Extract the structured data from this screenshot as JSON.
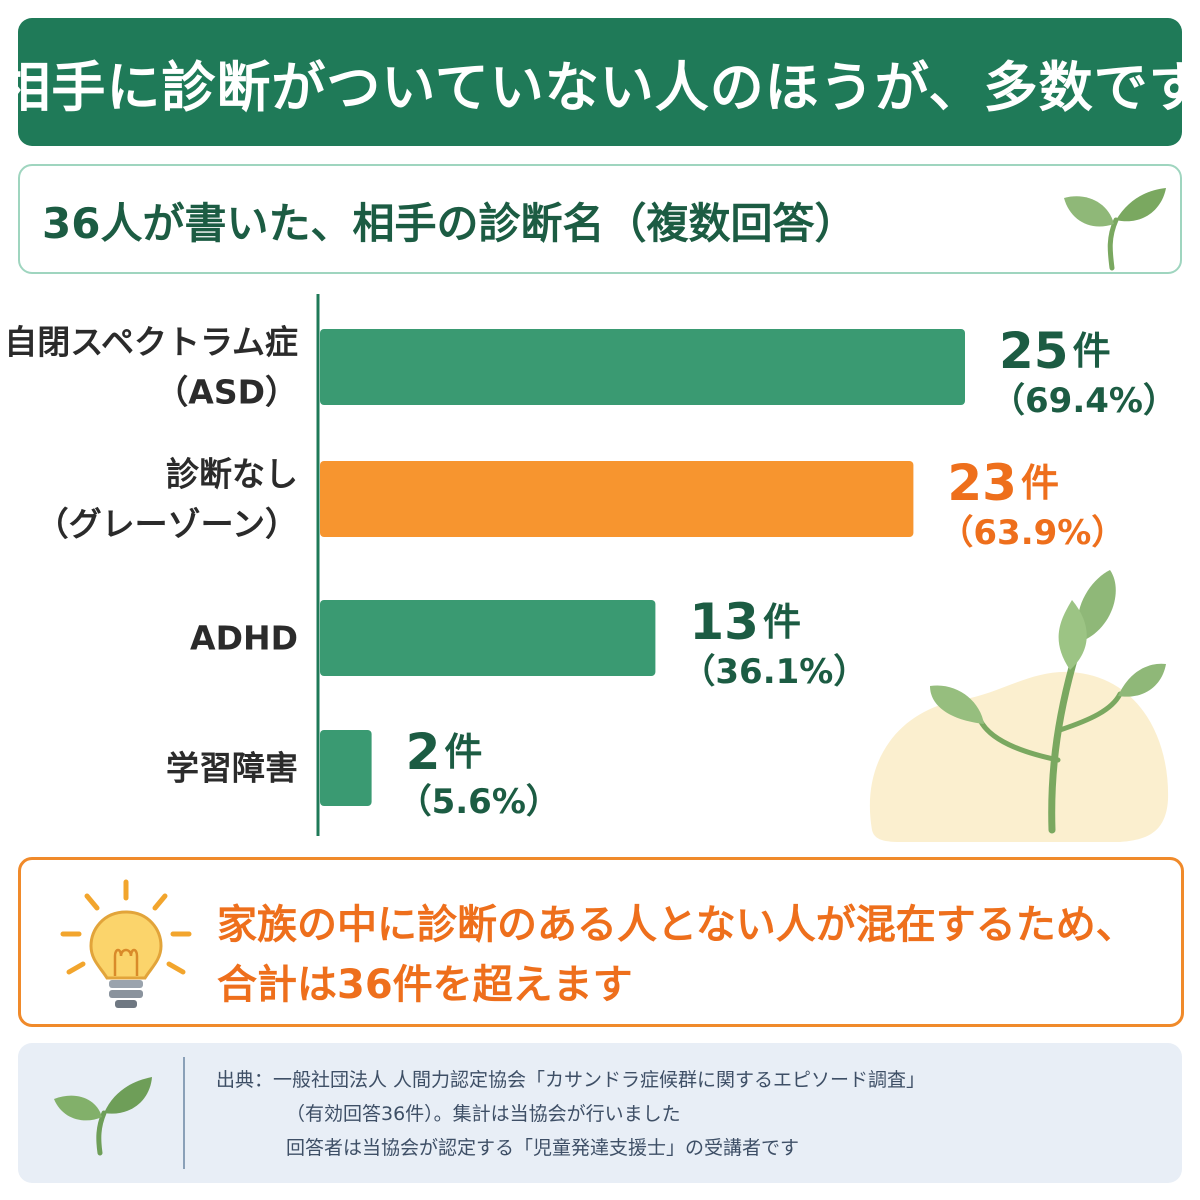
{
  "header": {
    "title": "相手に診断がついていない人のほうが、多数です"
  },
  "chart_data": {
    "type": "bar",
    "orientation": "horizontal",
    "title": "36人が書いた、相手の診断名（複数回答）",
    "categories": [
      [
        "自閉スペクトラム症",
        "（ASD）"
      ],
      [
        "診断なし",
        "（グレーゾーン）"
      ],
      [
        "ADHD"
      ],
      [
        "学習障害"
      ]
    ],
    "values": [
      25,
      23,
      13,
      2
    ],
    "value_labels": [
      "25件",
      "23件",
      "13件",
      "2件"
    ],
    "percent_labels": [
      "（69.4%）",
      "（63.9%）",
      "（36.1%）",
      "（5.6%）"
    ],
    "highlight_index": 1,
    "colors": {
      "bar": "#3a9a72",
      "highlight": "#f7952f",
      "label": "#1c5c43",
      "highlight_label": "#ee6f1c",
      "axis": "#1f7a58"
    },
    "grid": false,
    "legend": false
  },
  "note": {
    "icon": "lightbulb-icon",
    "line1": "家族の中に診断のある人とない人が混在するため、",
    "line2": "合計は36件を超えます"
  },
  "source": {
    "icon": "sprout-icon",
    "line1": "出典：一般社団法人 人間力認定協会「カサンドラ症候群に関するエピソード調査」",
    "line2": "（有効回答36件）。集計は当協会が行いました",
    "line3": "回答者は当協会が認定する「児童発達支援士」の受講者です"
  }
}
